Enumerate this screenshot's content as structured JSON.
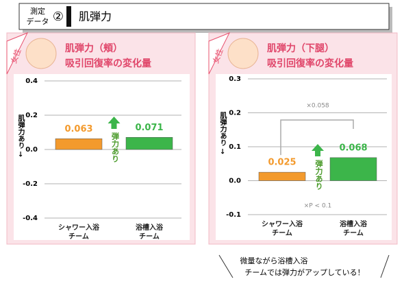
{
  "header": {
    "label_top": "測定",
    "label_bottom": "データ",
    "number": "②",
    "title": "肌弾力"
  },
  "chart_data": [
    {
      "type": "bar",
      "badge": "女性",
      "title": "肌弾力（頬）",
      "subtitle": "吸引回復率の変化量",
      "ylabel": "肌弾力あり →",
      "categories": [
        "シャワー入浴\nチーム",
        "浴槽入浴\nチーム"
      ],
      "values": [
        0.063,
        0.071
      ],
      "colors": [
        "#f39a2d",
        "#3cb54a"
      ],
      "ylim": [
        -0.4,
        0.4
      ],
      "yticks": [
        -0.4,
        -0.2,
        {
          "value": 0,
          "label": "0.0"
        },
        0.2,
        0.4
      ],
      "grid": true,
      "annotations": [
        "弾力あり"
      ]
    },
    {
      "type": "bar",
      "badge": "女性",
      "title": "肌弾力（下腿）",
      "subtitle": "吸引回復率の変化量",
      "ylabel": "肌弾力あり →",
      "categories": [
        "シャワー入浴\nチーム",
        "浴槽入浴\nチーム"
      ],
      "values": [
        0.025,
        0.068
      ],
      "colors": [
        "#f39a2d",
        "#3cb54a"
      ],
      "ylim": [
        -0.1,
        0.3
      ],
      "yticks": [
        -0.1,
        {
          "value": 0,
          "label": "0.0"
        },
        0.1,
        0.2,
        0.3
      ],
      "grid": true,
      "annotations": [
        "弾力あり",
        "×0.058",
        "×P < 0.1"
      ]
    }
  ],
  "note": [
    "微量ながら浴槽入浴",
    "チームでは弾力がアップしている！"
  ]
}
